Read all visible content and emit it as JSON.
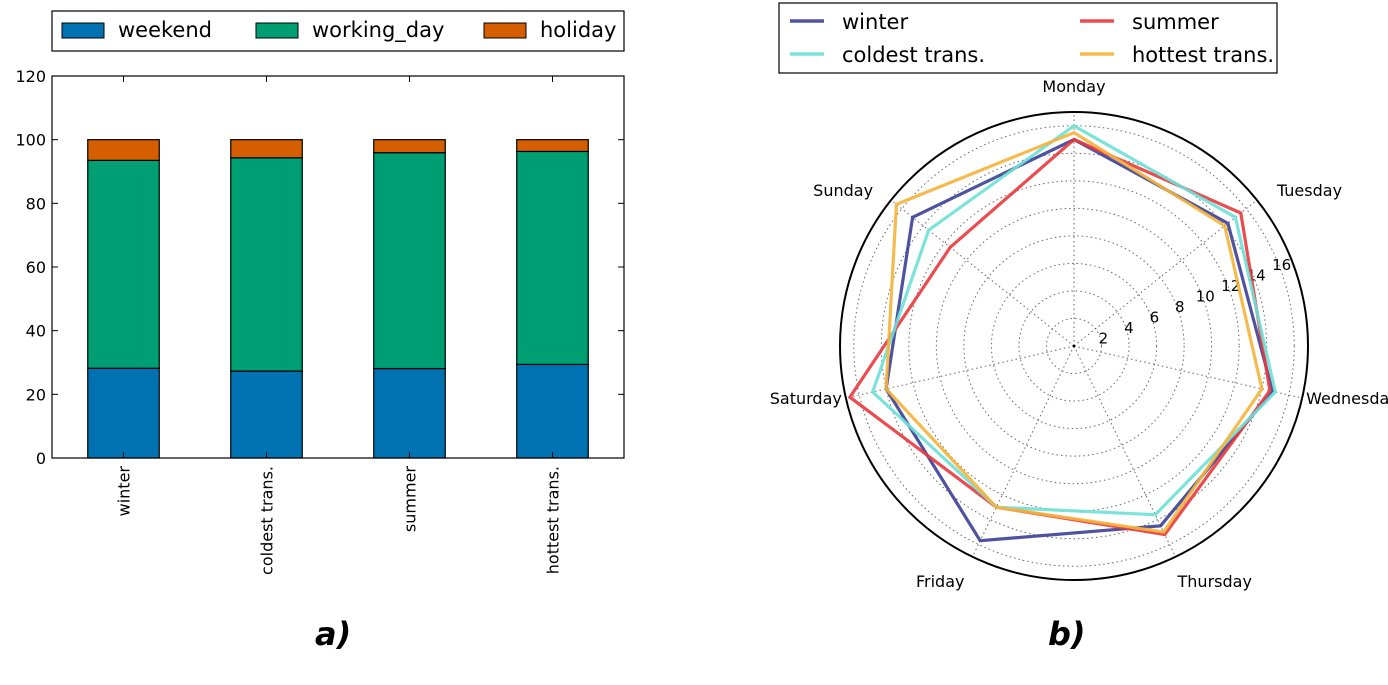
{
  "captions": {
    "a": "a)",
    "b": "b)"
  },
  "chart_data": [
    {
      "type": "bar",
      "stacked": true,
      "categories": [
        "winter",
        "coldest trans.",
        "summer",
        "hottest trans."
      ],
      "series": [
        {
          "name": "weekend",
          "color": "#0072b2",
          "values": [
            28.2,
            27.3,
            28.1,
            29.4
          ]
        },
        {
          "name": "working_day",
          "color": "#009e73",
          "values": [
            65.3,
            67.0,
            67.8,
            66.9
          ]
        },
        {
          "name": "holiday",
          "color": "#d55e00",
          "values": [
            6.5,
            5.7,
            4.1,
            3.7
          ]
        }
      ],
      "ylim": [
        0,
        120
      ],
      "yticks": [
        0,
        20,
        40,
        60,
        80,
        100,
        120
      ],
      "legend": "top, outside, 3 columns",
      "grid": false
    },
    {
      "type": "radar",
      "axes": [
        "Monday",
        "Tuesday",
        "Wednesday",
        "Thursday",
        "Friday",
        "Saturday",
        "Sunday"
      ],
      "rticks": [
        2,
        4,
        6,
        8,
        10,
        12,
        14,
        16
      ],
      "rmax": 17,
      "series": [
        {
          "name": "winter",
          "color": "#3b3f96",
          "values": [
            15.0,
            14.3,
            14.8,
            14.5,
            15.7,
            14.0,
            15.0
          ]
        },
        {
          "name": "summer",
          "color": "#e8383c",
          "values": [
            15.0,
            15.5,
            14.6,
            15.2,
            13.0,
            16.7,
            11.5
          ]
        },
        {
          "name": "coldest trans.",
          "color": "#6ee0d6",
          "values": [
            16.0,
            15.0,
            15.0,
            13.6,
            13.0,
            15.0,
            13.5
          ]
        },
        {
          "name": "hottest trans.",
          "color": "#f5b43c",
          "values": [
            15.5,
            14.0,
            14.0,
            15.0,
            13.0,
            14.0,
            16.5
          ]
        }
      ],
      "legend_order": [
        "winter",
        "summer",
        "coldest trans.",
        "hottest trans."
      ],
      "legend": "top, outside, 2 columns",
      "grid": true
    }
  ]
}
